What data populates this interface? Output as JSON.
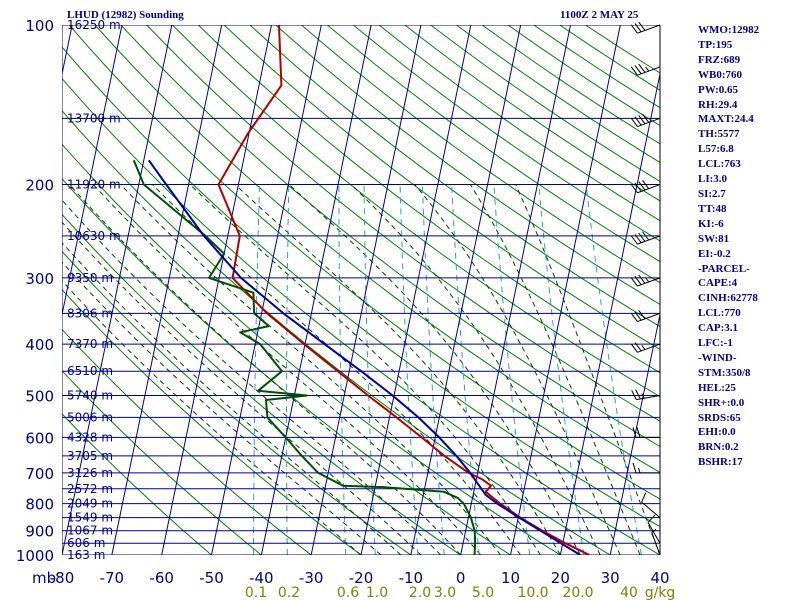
{
  "header": {
    "title": "LHUD (12982) Sounding",
    "time": "1100Z  2 MAY 25"
  },
  "indices": [
    "WMO:12982",
    "TP:195",
    "FRZ:689",
    "WB0:760",
    "PW:0.65",
    "RH:29.4",
    "MAXT:24.4",
    "TH:5577",
    "L57:6.8",
    "LCL:763",
    "LI:3.0",
    "SI:2.7",
    "TT:48",
    "KI:-6",
    "SW:81",
    "EI:-0.2",
    "-PARCEL-",
    "CAPE:4",
    "CINH:62778",
    "LCL:770",
    "CAP:3.1",
    "LFC:-1",
    "-WIND-",
    "STM:350/8",
    "HEL:25",
    "SHR+:0.0",
    "SRDS:65",
    "EHI:0.0",
    "BRN:0.2",
    "BSHR:17"
  ],
  "colors": {
    "grid": "#00008b",
    "isotherm": "#00008b",
    "dry_adiabat": "#008000",
    "moist_adiabat": "#004000",
    "mixing_ratio": "#3399cc",
    "temperature": "#b00000",
    "dewpoint": "#005000",
    "parcel": "#0000a0",
    "wind": "#000000"
  },
  "chart_data": {
    "type": "line",
    "title": "LHUD (12982) Sounding",
    "xlabel": "",
    "ylabel": "mb",
    "y_unit_label": "mb",
    "xlim": [
      -80,
      40
    ],
    "ylim": [
      1000,
      100
    ],
    "y_scale": "log",
    "pressure_ticks": [
      100,
      200,
      300,
      400,
      500,
      600,
      700,
      800,
      900,
      1000
    ],
    "temp_ticks": [
      -80,
      -70,
      -60,
      -50,
      -40,
      -30,
      -20,
      -10,
      0,
      10,
      20,
      30,
      40
    ],
    "height_labels": [
      {
        "p": 100,
        "label": "16250 m"
      },
      {
        "p": 150,
        "label": "13700 m"
      },
      {
        "p": 200,
        "label": "11920 m"
      },
      {
        "p": 250,
        "label": "10630 m"
      },
      {
        "p": 300,
        "label": "9350 m"
      },
      {
        "p": 350,
        "label": "8306 m"
      },
      {
        "p": 400,
        "label": "7370 m"
      },
      {
        "p": 450,
        "label": "6510 m"
      },
      {
        "p": 500,
        "label": "5740 m"
      },
      {
        "p": 550,
        "label": "5006 m"
      },
      {
        "p": 600,
        "label": "4328 m"
      },
      {
        "p": 650,
        "label": "3705 m"
      },
      {
        "p": 700,
        "label": "3126 m"
      },
      {
        "p": 750,
        "label": "2572 m"
      },
      {
        "p": 800,
        "label": "2049 m"
      },
      {
        "p": 850,
        "label": "1549 m"
      },
      {
        "p": 900,
        "label": "1067 m"
      },
      {
        "p": 950,
        "label": "606 m"
      },
      {
        "p": 1000,
        "label": "163 m"
      }
    ],
    "mixing_ratio_labels": [
      "0.1",
      "0.2",
      "0.6",
      "1.0",
      "2.0",
      "3.0",
      "5.0",
      "10.0",
      "20.0",
      "40",
      "g/kg"
    ],
    "series": [
      {
        "key": "temperature",
        "pressure": [
          1000,
          990,
          950,
          900,
          850,
          800,
          760,
          740,
          720,
          700,
          650,
          600,
          550,
          500,
          450,
          400,
          350,
          300,
          250,
          200,
          160,
          130,
          100
        ],
        "temperature": [
          25.8,
          24.8,
          20.5,
          15.4,
          10.4,
          5.8,
          2.4,
          3.2,
          1.2,
          -1.8,
          -7.4,
          -12.7,
          -18.6,
          -25.2,
          -32.3,
          -40.2,
          -48.9,
          -57.3,
          -57.6,
          -64.0,
          -60.2,
          -55.5,
          -58.5
        ]
      },
      {
        "key": "dewpoint",
        "pressure": [
          1000,
          950,
          900,
          850,
          800,
          780,
          760,
          745,
          740,
          700,
          650,
          600,
          550,
          510,
          500,
          490,
          450,
          400,
          380,
          370,
          350,
          320,
          300,
          270,
          250,
          200,
          180
        ],
        "temperature": [
          2.8,
          2.4,
          1.8,
          0.5,
          -1.5,
          -3.0,
          -6.0,
          -18.0,
          -26.5,
          -32.0,
          -36.0,
          -40.0,
          -44.5,
          -45.5,
          -37.5,
          -47.5,
          -43.5,
          -49.0,
          -53.5,
          -48.0,
          -51.5,
          -52.5,
          -62.0,
          -60.0,
          -64.5,
          -79.0,
          -82.0
        ]
      },
      {
        "key": "parcel",
        "pressure": [
          1000,
          950,
          900,
          850,
          800,
          770,
          750,
          700,
          650,
          600,
          550,
          500,
          450,
          400,
          350,
          300,
          250,
          200,
          180
        ],
        "temperature": [
          24.0,
          19.6,
          15.0,
          10.2,
          5.2,
          2.5,
          1.4,
          -1.5,
          -5.0,
          -9.2,
          -14.2,
          -20.3,
          -27.6,
          -36.1,
          -45.6,
          -55.6,
          -64.8,
          -74.5,
          -79.0
        ]
      }
    ],
    "wind_barbs": [
      {
        "p": 1000,
        "dir": 340,
        "spd": 5
      },
      {
        "p": 950,
        "dir": 330,
        "spd": 10
      },
      {
        "p": 850,
        "dir": 310,
        "spd": 10
      },
      {
        "p": 700,
        "dir": 270,
        "spd": 15
      },
      {
        "p": 600,
        "dir": 270,
        "spd": 20
      },
      {
        "p": 500,
        "dir": 260,
        "spd": 25
      },
      {
        "p": 400,
        "dir": 250,
        "spd": 25
      },
      {
        "p": 350,
        "dir": 250,
        "spd": 30
      },
      {
        "p": 300,
        "dir": 250,
        "spd": 35
      },
      {
        "p": 250,
        "dir": 250,
        "spd": 40
      },
      {
        "p": 200,
        "dir": 250,
        "spd": 40
      },
      {
        "p": 150,
        "dir": 250,
        "spd": 40
      },
      {
        "p": 120,
        "dir": 250,
        "spd": 35
      },
      {
        "p": 100,
        "dir": 250,
        "spd": 30
      }
    ]
  }
}
